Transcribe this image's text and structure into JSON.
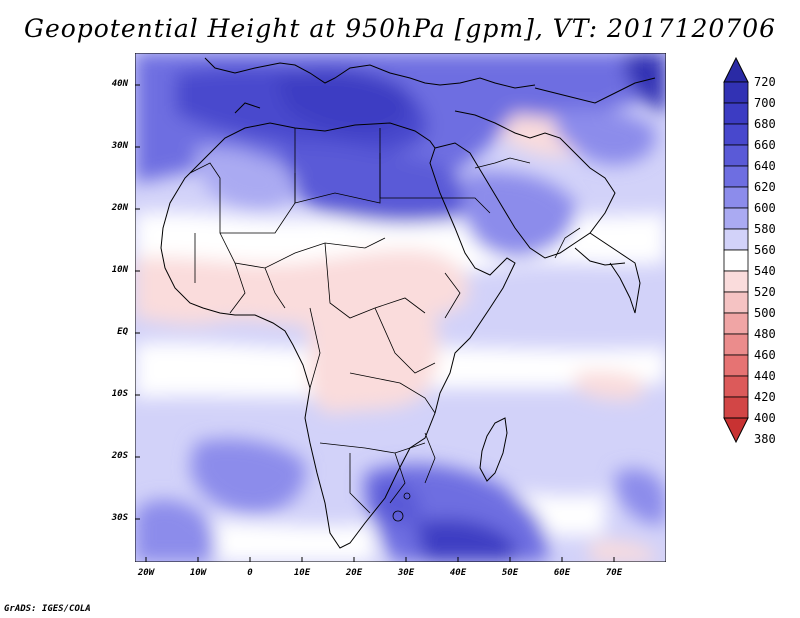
{
  "title": "Geopotential Height at 950hPa [gpm], VT: 2017120706",
  "credit": "GrADS: IGES/COLA",
  "map": {
    "lon_labels": [
      "20W",
      "10W",
      "0",
      "10E",
      "20E",
      "30E",
      "40E",
      "50E",
      "60E",
      "70E"
    ],
    "lat_labels": [
      "40N",
      "30N",
      "20N",
      "10N",
      "EQ",
      "10S",
      "20S",
      "30S"
    ]
  },
  "colorbar": {
    "levels": [
      {
        "label": "720",
        "color": "#2a2aa5"
      },
      {
        "label": "700",
        "color": "#3232b4"
      },
      {
        "label": "680",
        "color": "#3c3cc3"
      },
      {
        "label": "660",
        "color": "#4848cd"
      },
      {
        "label": "640",
        "color": "#5a5ad7"
      },
      {
        "label": "620",
        "color": "#6e6ee1"
      },
      {
        "label": "600",
        "color": "#8c8ceb"
      },
      {
        "label": "580",
        "color": "#aaaaf2"
      },
      {
        "label": "560",
        "color": "#d2d2f9"
      },
      {
        "label": "540",
        "color": "#ffffff"
      },
      {
        "label": "520",
        "color": "#fadcdc"
      },
      {
        "label": "500",
        "color": "#f5c3c3"
      },
      {
        "label": "480",
        "color": "#f0a5a5"
      },
      {
        "label": "460",
        "color": "#eb8c8c"
      },
      {
        "label": "440",
        "color": "#e67373"
      },
      {
        "label": "420",
        "color": "#dc5a5a"
      },
      {
        "label": "400",
        "color": "#d24646"
      },
      {
        "label": "380",
        "color": "#c83232"
      }
    ]
  }
}
